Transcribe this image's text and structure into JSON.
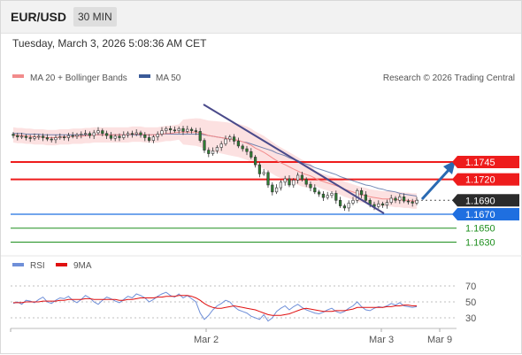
{
  "header": {
    "pair": "EUR/USD",
    "timeframe": "30 MIN"
  },
  "timestamp": "Tuesday, March 3, 2026 5:08:36 AM CET",
  "legend": {
    "ma20": "MA 20 + Bollinger Bands",
    "ma50": "MA 50",
    "copyright": "Research © 2026 Trading Central",
    "rsi": "RSI",
    "rsi_ma": "9MA"
  },
  "colors": {
    "resistance": "#ee1c1c",
    "support_primary": "#1f6fe0",
    "support_secondary": "#1e8f1e",
    "current": "#2b2b2b",
    "ma20": "#f28b8b",
    "ma50": "#3a5a98",
    "band": "#fbdcdc",
    "rsi": "#6f8fd8",
    "rsi_ma": "#e01010",
    "candle_up": "#ffffff",
    "candle_down": "#2e7d32",
    "arrow": "#2a6ab2"
  },
  "chart_data": [
    {
      "type": "line",
      "name": "price",
      "chart_subtype": "candlestick",
      "y_domain": [
        1.16,
        1.181
      ],
      "x_ticks": [
        "Mar 2",
        "Mar 3",
        "Mar 9"
      ],
      "price_levels": [
        {
          "label": "1.1745",
          "value": 1.1745,
          "kind": "resistance"
        },
        {
          "label": "1.1720",
          "value": 1.172,
          "kind": "resistance"
        },
        {
          "label": "1.1690",
          "value": 1.169,
          "kind": "current"
        },
        {
          "label": "1.1670",
          "value": 1.167,
          "kind": "support"
        },
        {
          "label": "1.1650",
          "value": 1.165,
          "kind": "support2"
        },
        {
          "label": "1.1630",
          "value": 1.163,
          "kind": "support2"
        }
      ],
      "close": [
        1.1783,
        1.1781,
        1.1782,
        1.178,
        1.1779,
        1.1781,
        1.1782,
        1.178,
        1.1778,
        1.1777,
        1.178,
        1.1781,
        1.178,
        1.1783,
        1.1782,
        1.1784,
        1.1785,
        1.1786,
        1.1783,
        1.1787,
        1.179,
        1.1786,
        1.1783,
        1.1779,
        1.1782,
        1.178,
        1.1784,
        1.1786,
        1.1785,
        1.1787,
        1.1784,
        1.178,
        1.1776,
        1.1781,
        1.1785,
        1.179,
        1.1793,
        1.1791,
        1.179,
        1.1793,
        1.1789,
        1.1792,
        1.179,
        1.1789,
        1.1776,
        1.1762,
        1.1757,
        1.1761,
        1.1766,
        1.1771,
        1.1778,
        1.1781,
        1.1775,
        1.1768,
        1.1764,
        1.176,
        1.1752,
        1.1741,
        1.1728,
        1.173,
        1.1712,
        1.1702,
        1.1708,
        1.1716,
        1.1721,
        1.1712,
        1.1719,
        1.1726,
        1.172,
        1.1713,
        1.1708,
        1.1702,
        1.1699,
        1.1694,
        1.1697,
        1.17,
        1.169,
        1.1682,
        1.1679,
        1.1686,
        1.169,
        1.1704,
        1.1698,
        1.169,
        1.1684,
        1.1681,
        1.1685,
        1.1683,
        1.1687,
        1.1693,
        1.169,
        1.1695,
        1.1689,
        1.1688,
        1.1686,
        1.169
      ],
      "ma20": [
        1.1784,
        1.1783,
        1.1783,
        1.1782,
        1.1782,
        1.1781,
        1.1781,
        1.1781,
        1.178,
        1.178,
        1.178,
        1.1781,
        1.1781,
        1.1781,
        1.1782,
        1.1782,
        1.1782,
        1.1783,
        1.1783,
        1.1784,
        1.1784,
        1.1784,
        1.1784,
        1.1784,
        1.1784,
        1.1784,
        1.1784,
        1.1784,
        1.1785,
        1.1785,
        1.1785,
        1.1784,
        1.1784,
        1.1784,
        1.1784,
        1.1785,
        1.1786,
        1.1786,
        1.1787,
        1.1788,
        1.1788,
        1.1788,
        1.1788,
        1.1788,
        1.1787,
        1.1785,
        1.1783,
        1.1782,
        1.1781,
        1.178,
        1.1779,
        1.1778,
        1.1777,
        1.1776,
        1.1774,
        1.1772,
        1.1769,
        1.1765,
        1.1762,
        1.1759,
        1.1755,
        1.1751,
        1.1747,
        1.1744,
        1.1741,
        1.1738,
        1.1735,
        1.1732,
        1.1729,
        1.1727,
        1.1725,
        1.1722,
        1.1719,
        1.1717,
        1.1715,
        1.1713,
        1.1711,
        1.1709,
        1.1706,
        1.1704,
        1.1702,
        1.17,
        1.1698,
        1.1697,
        1.1695,
        1.1694,
        1.1693,
        1.1692,
        1.1692,
        1.1692,
        1.1691,
        1.1691,
        1.169,
        1.169,
        1.1689,
        1.1689
      ],
      "ma50": [
        1.1786,
        1.1786,
        1.1786,
        1.1785,
        1.1785,
        1.1785,
        1.1785,
        1.1784,
        1.1784,
        1.1784,
        1.1784,
        1.1784,
        1.1784,
        1.1784,
        1.1784,
        1.1784,
        1.1784,
        1.1784,
        1.1784,
        1.1784,
        1.1784,
        1.1784,
        1.1784,
        1.1784,
        1.1784,
        1.1784,
        1.1784,
        1.1784,
        1.1784,
        1.1784,
        1.1784,
        1.1784,
        1.1784,
        1.1784,
        1.1784,
        1.1785,
        1.1785,
        1.1785,
        1.1785,
        1.1785,
        1.1785,
        1.1785,
        1.1785,
        1.1785,
        1.1785,
        1.1784,
        1.1783,
        1.1782,
        1.1781,
        1.178,
        1.1779,
        1.1778,
        1.1777,
        1.1776,
        1.1774,
        1.1773,
        1.1771,
        1.1769,
        1.1767,
        1.1765,
        1.1763,
        1.1761,
        1.1758,
        1.1756,
        1.1754,
        1.1751,
        1.1749,
        1.1747,
        1.1744,
        1.1742,
        1.174,
        1.1737,
        1.1735,
        1.1733,
        1.1731,
        1.1729,
        1.1727,
        1.1724,
        1.1722,
        1.172,
        1.1718,
        1.1716,
        1.1714,
        1.1712,
        1.1711,
        1.1709,
        1.1707,
        1.1706,
        1.1704,
        1.1703,
        1.1702,
        1.17,
        1.1699,
        1.1698,
        1.1697,
        1.1696
      ]
    },
    {
      "type": "line",
      "name": "rsi",
      "y_domain": [
        10,
        80
      ],
      "y_ticks": [
        70,
        50,
        30
      ],
      "rsi": [
        48,
        50,
        47,
        52,
        51,
        49,
        53,
        56,
        50,
        48,
        52,
        55,
        54,
        57,
        52,
        49,
        53,
        58,
        55,
        50,
        47,
        52,
        56,
        54,
        51,
        49,
        53,
        57,
        55,
        60,
        58,
        55,
        50,
        53,
        57,
        60,
        62,
        58,
        56,
        60,
        55,
        58,
        54,
        50,
        36,
        28,
        33,
        40,
        45,
        48,
        52,
        50,
        44,
        40,
        38,
        36,
        32,
        30,
        28,
        34,
        26,
        30,
        38,
        42,
        45,
        40,
        44,
        47,
        43,
        40,
        38,
        36,
        35,
        37,
        40,
        42,
        38,
        36,
        38,
        42,
        45,
        50,
        44,
        40,
        39,
        42,
        44,
        43,
        45,
        48,
        46,
        49,
        45,
        44,
        43,
        44
      ],
      "rsi_ma": [
        49,
        49,
        49,
        50,
        50,
        50,
        50,
        51,
        51,
        51,
        51,
        52,
        52,
        53,
        53,
        53,
        53,
        54,
        54,
        53,
        53,
        53,
        53,
        53,
        53,
        52,
        52,
        53,
        53,
        54,
        55,
        55,
        55,
        55,
        56,
        56,
        57,
        57,
        57,
        58,
        58,
        58,
        57,
        55,
        52,
        48,
        45,
        43,
        42,
        42,
        43,
        44,
        45,
        44,
        43,
        42,
        41,
        40,
        38,
        36,
        34,
        33,
        33,
        33,
        34,
        35,
        37,
        39,
        41,
        42,
        41,
        40,
        39,
        38,
        38,
        38,
        39,
        39,
        39,
        40,
        41,
        43,
        43,
        43,
        43,
        43,
        43,
        43,
        44,
        44,
        45,
        45,
        46,
        46,
        45,
        45
      ]
    }
  ]
}
